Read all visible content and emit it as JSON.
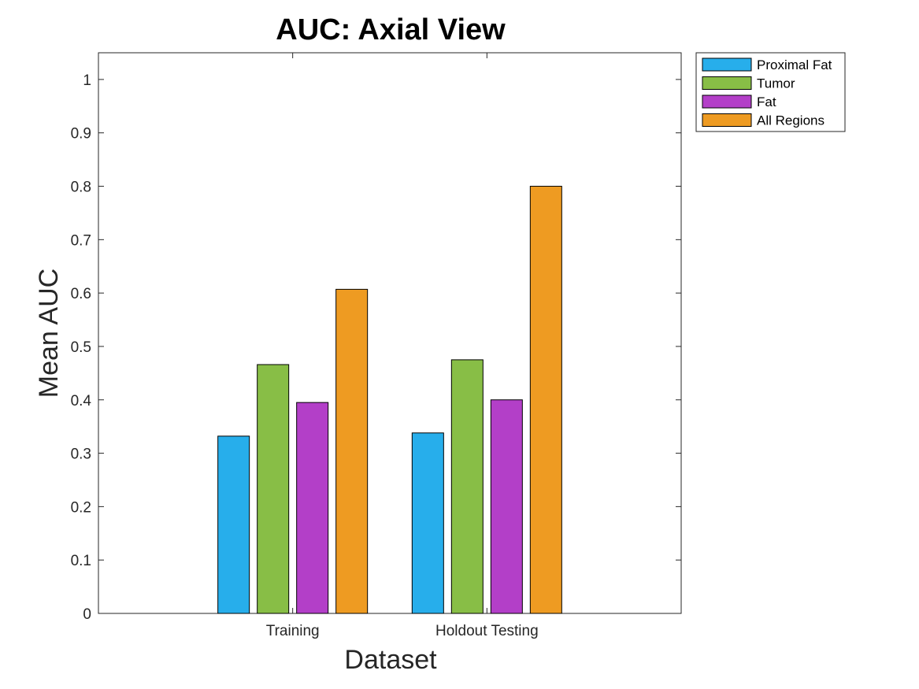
{
  "chart_data": {
    "type": "bar",
    "title": "AUC: Axial View",
    "xlabel": "Dataset",
    "ylabel": "Mean AUC",
    "categories": [
      "Training",
      "Holdout Testing"
    ],
    "series": [
      {
        "name": "Proximal Fat",
        "color": "#27aeeb",
        "values": [
          0.332,
          0.338
        ]
      },
      {
        "name": "Tumor",
        "color": "#88be46",
        "values": [
          0.466,
          0.475
        ]
      },
      {
        "name": "Fat",
        "color": "#b33fc8",
        "values": [
          0.395,
          0.4
        ]
      },
      {
        "name": "All Regions",
        "color": "#ee9b22",
        "values": [
          0.607,
          0.8
        ]
      }
    ],
    "ylim": [
      0,
      1.05
    ],
    "yticks": [
      "0",
      "0.1",
      "0.2",
      "0.3",
      "0.4",
      "0.5",
      "0.6",
      "0.7",
      "0.8",
      "0.9",
      "1"
    ],
    "grid": false,
    "legend_position": "outside-top-right"
  }
}
